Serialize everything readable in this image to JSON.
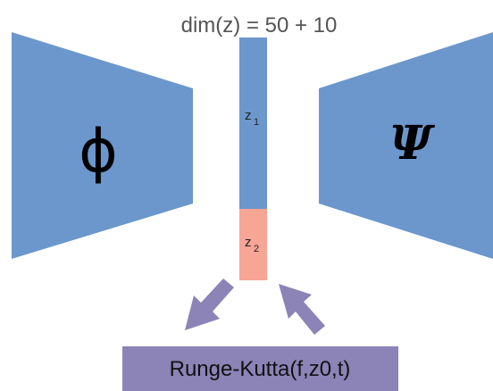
{
  "title": "dim(z) = 50 + 10",
  "encoder_symbol": "ϕ",
  "decoder_symbol": "Ψ",
  "latent_segments": [
    {
      "name": "z",
      "subscript": "1",
      "color": "#6b97cc"
    },
    {
      "name": "z",
      "subscript": "2",
      "color": "#f7a595"
    }
  ],
  "integrator_label": "Runge-Kutta(f,z0,t)",
  "colors": {
    "encoder_fill": "#6b97cc",
    "decoder_fill": "#6b97cc",
    "latent_z1": "#6b97cc",
    "latent_z2": "#f7a595",
    "integrator_box": "#8c83b6",
    "arrows": "#8c83b6"
  }
}
